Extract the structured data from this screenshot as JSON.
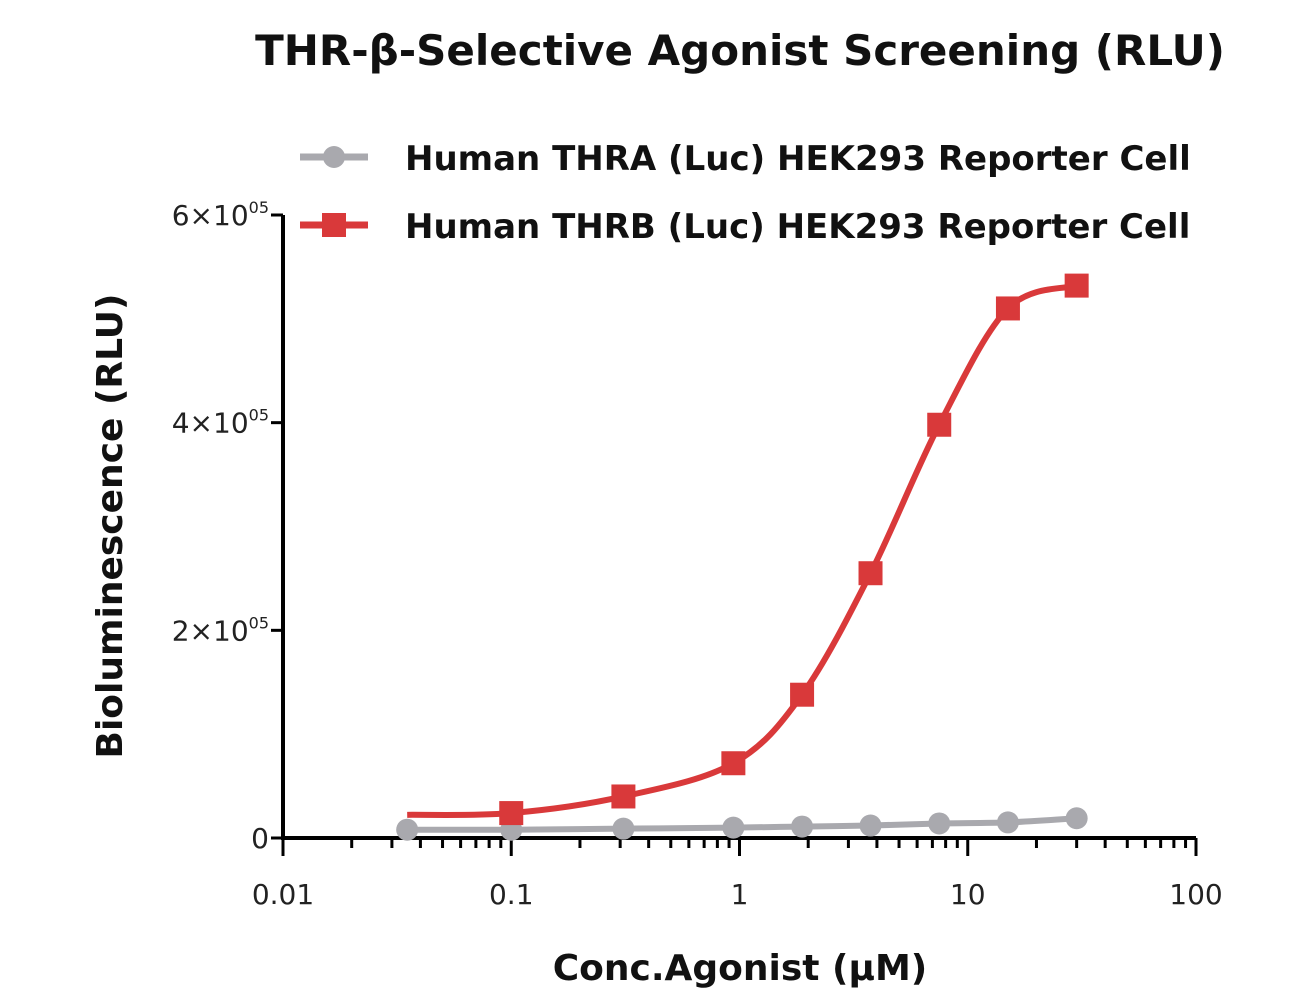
{
  "chart_data": {
    "type": "line",
    "title": "THR-β-Selective Agonist Screening (RLU)",
    "xlabel": "Conc.Agonist (µM)",
    "ylabel": "Bioluminescence (RLU)",
    "x_scale": "log",
    "xlim": [
      0.01,
      100
    ],
    "ylim": [
      0,
      600000
    ],
    "x_ticks": [
      "0.01",
      "0.1",
      "1",
      "10",
      "100"
    ],
    "y_ticks": [
      {
        "base": "0",
        "exp": ""
      },
      {
        "base": "2×10",
        "exp": "05"
      },
      {
        "base": "4×10",
        "exp": "05"
      },
      {
        "base": "6×10",
        "exp": "05"
      }
    ],
    "legend_position": "top",
    "grid": false,
    "series": [
      {
        "name": "Human THRA (Luc) HEK293 Reporter Cell",
        "color": "#a9a9ae",
        "marker": "circle",
        "x": [
          0.035,
          0.1,
          0.31,
          0.94,
          1.88,
          3.75,
          7.5,
          15,
          30
        ],
        "values": [
          8000,
          8000,
          9000,
          10000,
          11000,
          12000,
          14000,
          15000,
          19000
        ]
      },
      {
        "name": "Human THRB (Luc) HEK293 Reporter Cell",
        "color": "#d9393a",
        "marker": "square",
        "x": [
          0.1,
          0.31,
          0.94,
          1.88,
          3.75,
          7.5,
          15,
          30
        ],
        "values": [
          24000,
          40000,
          72000,
          138000,
          255000,
          398000,
          510000,
          532000
        ]
      }
    ]
  }
}
